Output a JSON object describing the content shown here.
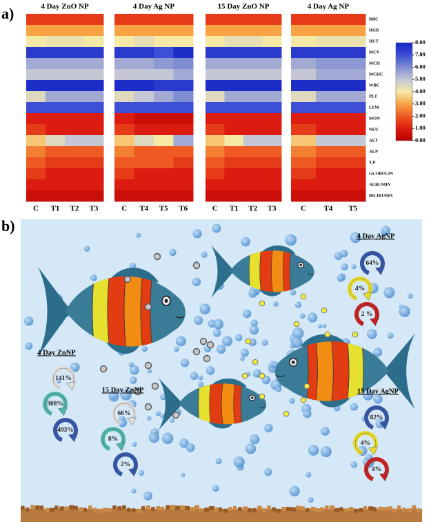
{
  "panel_a": {
    "label": "a)"
  },
  "rows": [
    "RBC",
    "HGB",
    "HCT",
    "MCV",
    "MCH",
    "MCHC",
    "WBC",
    "PLT",
    "LYM",
    "MON",
    "NEU",
    "ALT",
    "ALP",
    "T.P",
    "GLOBULIN",
    "ALBUMIN",
    "BILIRUBIN"
  ],
  "colorbar": {
    "lim": [
      0,
      8
    ],
    "colormap": [
      "#b80000",
      "#dc1c10",
      "#ee5a22",
      "#f7a344",
      "#f6e9a6",
      "#c4c6d6",
      "#7f8ed2",
      "#3d4fd6",
      "#1424c4"
    ],
    "ticks": [
      {
        "value": 8,
        "label": "8.00"
      },
      {
        "value": 7,
        "label": "7.00"
      },
      {
        "value": 6,
        "label": "6.00"
      },
      {
        "value": 5,
        "label": "5.00"
      },
      {
        "value": 4,
        "label": "4.00"
      },
      {
        "value": 3,
        "label": "3.00"
      },
      {
        "value": 2,
        "label": "2.00"
      },
      {
        "value": 1,
        "label": "1.00"
      },
      {
        "value": 0,
        "label": "0.00"
      }
    ]
  },
  "chart_data": [
    {
      "type": "heatmap",
      "title": "4 Day ZnO NP",
      "categories": [
        "C",
        "T1",
        "T2",
        "T3"
      ],
      "values": [
        [
          1.5,
          1.5,
          1.5,
          1.5
        ],
        [
          3,
          3,
          3,
          3
        ],
        [
          4,
          4.2,
          4.2,
          4
        ],
        [
          7.5,
          7.5,
          7.5,
          7.5
        ],
        [
          5.5,
          5.5,
          5.5,
          5.5
        ],
        [
          5,
          5,
          5,
          5
        ],
        [
          7.8,
          7.8,
          7.8,
          7.8
        ],
        [
          4.5,
          5.5,
          5.5,
          5.5
        ],
        [
          7,
          7,
          7,
          7
        ],
        [
          1,
          1,
          1,
          1
        ],
        [
          1.5,
          1,
          1,
          1
        ],
        [
          3.5,
          4.5,
          5,
          5
        ],
        [
          2.5,
          2,
          2,
          2
        ],
        [
          2,
          1.5,
          1.5,
          1.5
        ],
        [
          1.5,
          1,
          1,
          1
        ],
        [
          1,
          1,
          1,
          1
        ],
        [
          0.5,
          0.5,
          0.5,
          0.5
        ]
      ]
    },
    {
      "type": "heatmap",
      "title": "4 Day Ag NP",
      "categories": [
        "C",
        "T4",
        "T5",
        "T6"
      ],
      "values": [
        [
          1.5,
          1.5,
          1.5,
          1.5
        ],
        [
          3,
          3,
          3,
          3
        ],
        [
          4,
          4.3,
          4,
          4
        ],
        [
          7.5,
          7.5,
          7,
          7.8
        ],
        [
          5.5,
          5.5,
          5.8,
          6
        ],
        [
          5,
          5,
          5,
          5.5
        ],
        [
          7.8,
          7.8,
          7.5,
          7.5
        ],
        [
          4.5,
          5,
          5.5,
          6
        ],
        [
          7,
          7,
          7,
          7
        ],
        [
          1,
          0.5,
          0.5,
          0.5
        ],
        [
          1.5,
          1,
          1,
          1
        ],
        [
          3.5,
          4.5,
          4,
          5.5
        ],
        [
          2.5,
          2,
          2,
          2
        ],
        [
          2,
          2,
          2,
          1.5
        ],
        [
          1.5,
          1,
          1,
          1
        ],
        [
          1,
          1,
          1,
          1
        ],
        [
          0.5,
          0.5,
          0.5,
          0.5
        ]
      ]
    },
    {
      "type": "heatmap",
      "title": "15 Day ZnO NP",
      "categories": [
        "C",
        "T1",
        "T2",
        "T3"
      ],
      "values": [
        [
          1.5,
          1.5,
          1.5,
          1.5
        ],
        [
          3,
          3,
          3,
          3
        ],
        [
          4,
          4.3,
          4.3,
          4
        ],
        [
          7.5,
          7.5,
          7.5,
          7.5
        ],
        [
          5.5,
          5.5,
          5.5,
          5.5
        ],
        [
          5,
          5,
          5,
          5
        ],
        [
          7.8,
          7.8,
          7.8,
          7.8
        ],
        [
          4.5,
          5.5,
          5.5,
          5.5
        ],
        [
          7,
          7,
          7,
          7
        ],
        [
          1,
          1,
          1,
          1
        ],
        [
          1.5,
          1,
          1,
          1
        ],
        [
          3.5,
          4,
          5,
          5
        ],
        [
          2.5,
          2,
          2,
          2
        ],
        [
          2,
          1.5,
          1.5,
          1.5
        ],
        [
          1.5,
          1,
          1,
          1
        ],
        [
          1,
          1,
          1,
          1
        ],
        [
          0.5,
          0.5,
          0.5,
          0.5
        ]
      ]
    },
    {
      "type": "heatmap",
      "title": "4 Day Ag NP",
      "categories": [
        "C",
        "T4",
        "T5"
      ],
      "values": [
        [
          1.5,
          1.5,
          1.5
        ],
        [
          3,
          3,
          3
        ],
        [
          4,
          4.2,
          4.2
        ],
        [
          7.5,
          7.5,
          7.5
        ],
        [
          5.5,
          5.8,
          5.8
        ],
        [
          5,
          5.5,
          5.5
        ],
        [
          7.8,
          7.8,
          7.8
        ],
        [
          4.5,
          5.5,
          5.5
        ],
        [
          7,
          7,
          7
        ],
        [
          1,
          1,
          1
        ],
        [
          1.5,
          1,
          1
        ],
        [
          3.5,
          5,
          5
        ],
        [
          2.5,
          2,
          2
        ],
        [
          2,
          1.5,
          1.5
        ],
        [
          1.5,
          1,
          1
        ],
        [
          1,
          1,
          1
        ],
        [
          0.5,
          0.5,
          0.5
        ]
      ]
    }
  ],
  "illustration": {
    "label": "b)",
    "groups": [
      {
        "title": "4 Day AgNP",
        "values": [
          "64%",
          "4%",
          "2 %"
        ]
      },
      {
        "title": "4 Day ZnNP",
        "values": [
          "141%",
          "308%",
          "493%"
        ]
      },
      {
        "title": "15 Day ZnNP",
        "values": [
          "66%",
          "8%",
          "2%"
        ]
      },
      {
        "title": "15 Day AgNP",
        "values": [
          "82%",
          "4%",
          "4%"
        ]
      }
    ]
  }
}
